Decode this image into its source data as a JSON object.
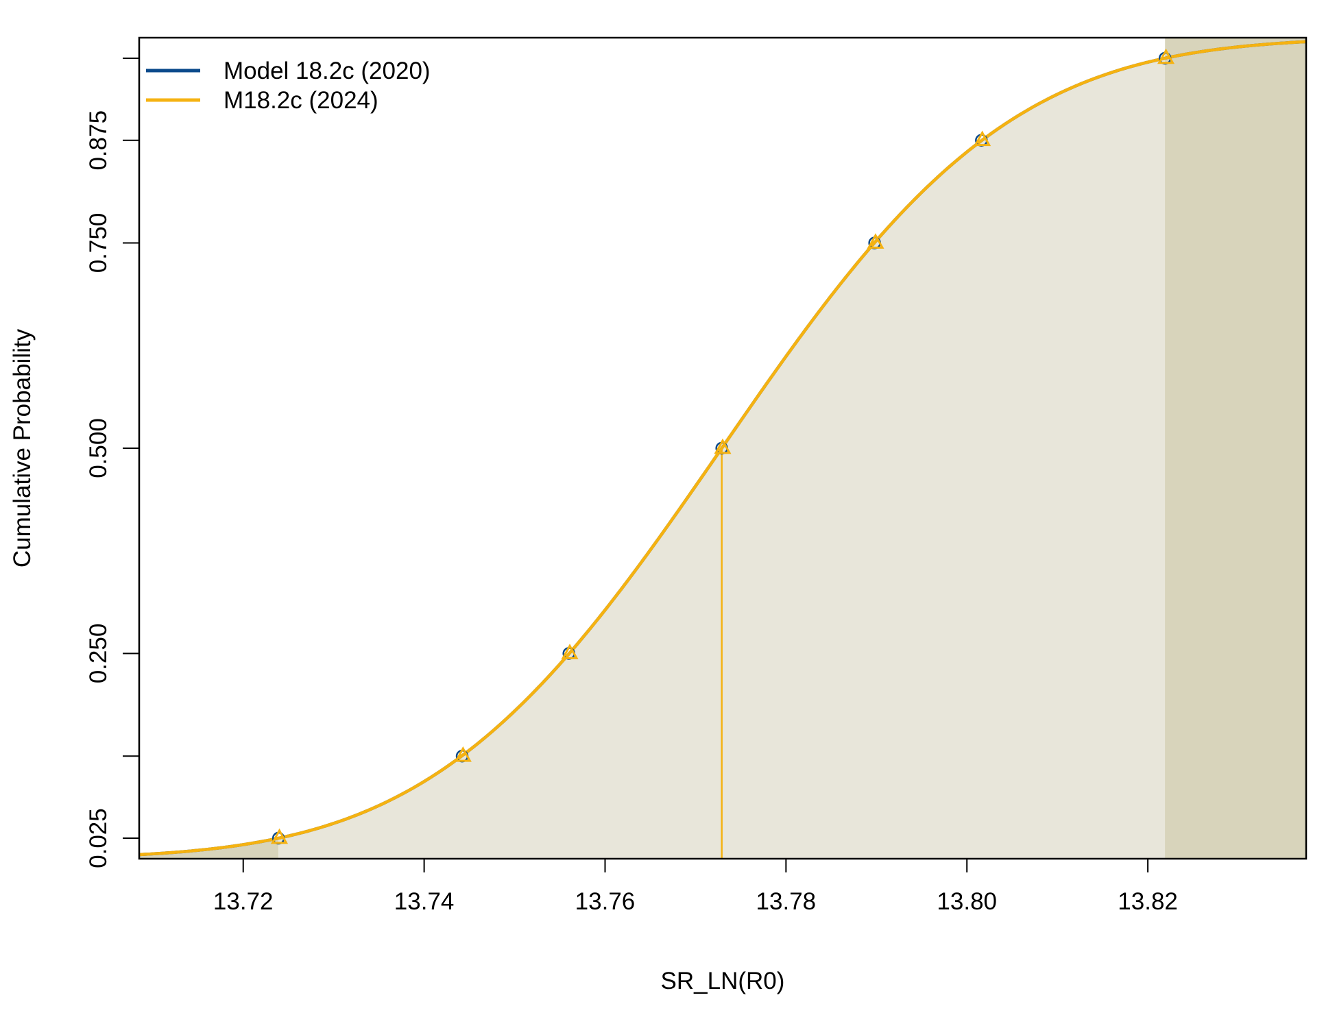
{
  "chart_data": {
    "type": "line",
    "title": "",
    "xlabel": "SR_LN(R0)",
    "ylabel": "Cumulative Probability",
    "xlim": [
      13.7085,
      13.8375
    ],
    "ylim": [
      0.0,
      1.0
    ],
    "x_ticks": [
      13.72,
      13.74,
      13.76,
      13.78,
      13.8,
      13.82
    ],
    "x_tick_labels": [
      "13.72",
      "13.74",
      "13.76",
      "13.78",
      "13.80",
      "13.82"
    ],
    "y_ticks": [
      0.025,
      0.125,
      0.25,
      0.5,
      0.75,
      0.875,
      0.975
    ],
    "y_tick_labels": [
      "0.025",
      "",
      "0.250",
      "0.500",
      "0.750",
      "0.875",
      ""
    ],
    "distribution": {
      "mean": 13.7729,
      "sd": 0.025
    },
    "median_line_x": 13.7729,
    "shaded_interval": [
      13.7239,
      13.8219
    ],
    "series": [
      {
        "name": "Model 18.2c (2020)",
        "color": "#0b4a8b",
        "marker": "circle",
        "points": [
          {
            "x": 13.7239,
            "p": 0.025
          },
          {
            "x": 13.7442,
            "p": 0.125
          },
          {
            "x": 13.756,
            "p": 0.25
          },
          {
            "x": 13.7729,
            "p": 0.5
          },
          {
            "x": 13.7898,
            "p": 0.75
          },
          {
            "x": 13.8016,
            "p": 0.875
          },
          {
            "x": 13.8219,
            "p": 0.975
          }
        ]
      },
      {
        "name": "M18.2c (2024)",
        "color": "#f5b211",
        "marker": "triangle",
        "points": [
          {
            "x": 13.724,
            "p": 0.025
          },
          {
            "x": 13.7443,
            "p": 0.125
          },
          {
            "x": 13.7561,
            "p": 0.25
          },
          {
            "x": 13.773,
            "p": 0.5
          },
          {
            "x": 13.7899,
            "p": 0.75
          },
          {
            "x": 13.8017,
            "p": 0.875
          },
          {
            "x": 13.822,
            "p": 0.975
          }
        ]
      }
    ],
    "legend": {
      "position": "top-left"
    },
    "colors": {
      "tail_fill": "#d8d4bb",
      "interval_fill": "#e8e6da"
    }
  }
}
